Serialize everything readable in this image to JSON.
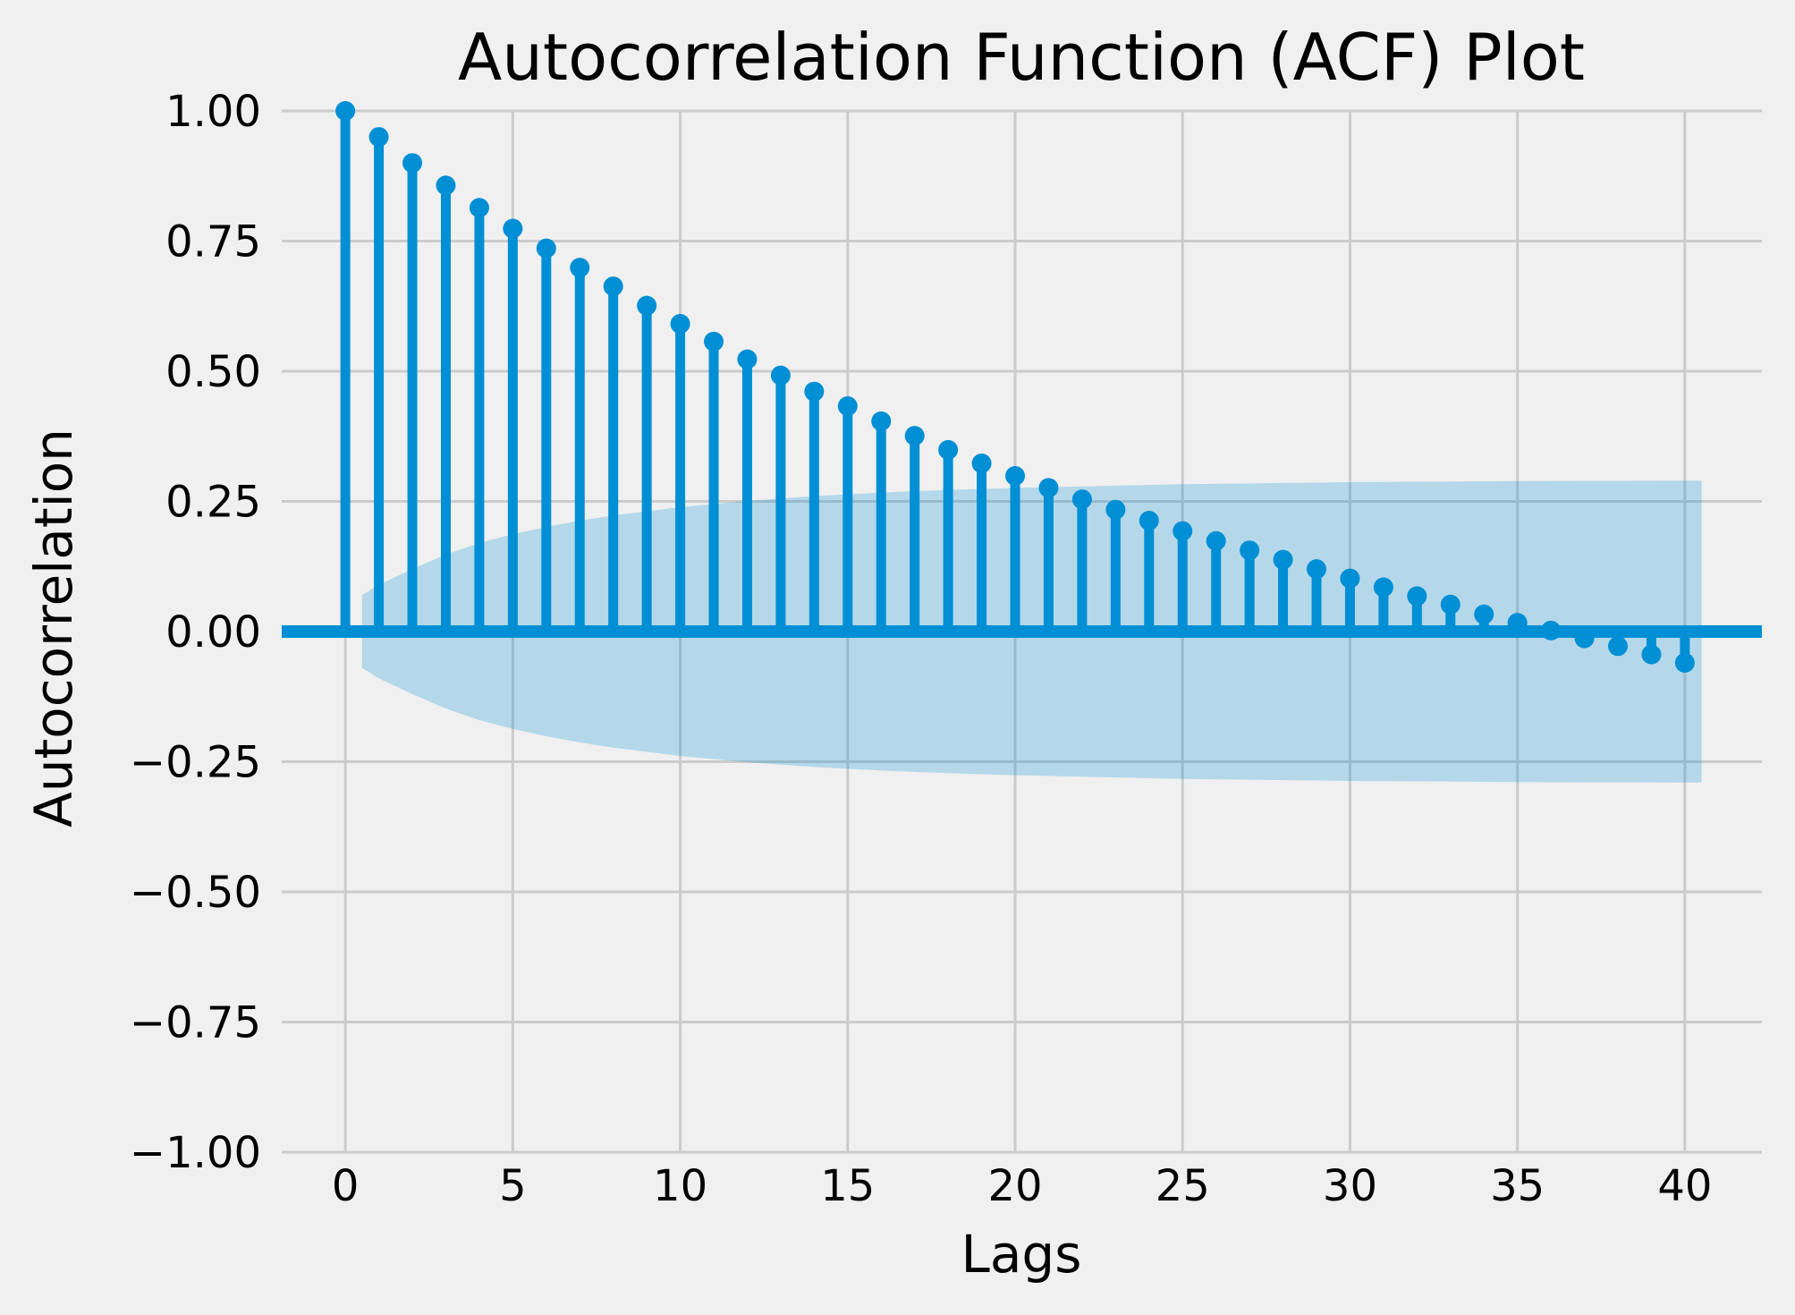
{
  "chart_data": {
    "type": "stem",
    "title": "Autocorrelation Function (ACF) Plot",
    "xlabel": "Lags",
    "ylabel": "Autocorrelation",
    "xlim": [
      -1.9,
      42.3
    ],
    "ylim": [
      -1.0,
      1.0
    ],
    "xticks": [
      0,
      5,
      10,
      15,
      20,
      25,
      30,
      35,
      40
    ],
    "xtick_labels": [
      "0",
      "5",
      "10",
      "15",
      "20",
      "25",
      "30",
      "35",
      "40"
    ],
    "yticks": [
      -1.0,
      -0.75,
      -0.5,
      -0.25,
      0.0,
      0.25,
      0.5,
      0.75,
      1.0
    ],
    "ytick_labels": [
      "−1.00",
      "−0.75",
      "−0.50",
      "−0.25",
      "0.00",
      "0.25",
      "0.50",
      "0.75",
      "1.00"
    ],
    "grid": true,
    "colors": {
      "stem": "#008fd5",
      "band": "#b3d6ea",
      "grid": "#cbcbcb",
      "background": "#f0f0f0"
    },
    "lags": [
      0,
      1,
      2,
      3,
      4,
      5,
      6,
      7,
      8,
      9,
      10,
      11,
      12,
      13,
      14,
      15,
      16,
      17,
      18,
      19,
      20,
      21,
      22,
      23,
      24,
      25,
      26,
      27,
      28,
      29,
      30,
      31,
      32,
      33,
      34,
      35,
      36,
      37,
      38,
      39,
      40
    ],
    "acf": [
      1.0,
      0.95,
      0.9,
      0.857,
      0.814,
      0.774,
      0.736,
      0.699,
      0.663,
      0.626,
      0.591,
      0.557,
      0.523,
      0.492,
      0.461,
      0.433,
      0.404,
      0.376,
      0.349,
      0.323,
      0.299,
      0.276,
      0.254,
      0.234,
      0.213,
      0.193,
      0.174,
      0.156,
      0.138,
      0.12,
      0.102,
      0.085,
      0.068,
      0.052,
      0.033,
      0.017,
      0.002,
      -0.013,
      -0.028,
      -0.044,
      -0.06
    ],
    "confidence_band": {
      "lags": [
        0.5,
        1,
        2,
        3,
        4,
        5,
        6,
        7,
        8,
        10,
        12,
        14,
        16,
        18,
        20,
        25,
        30,
        35,
        40,
        40.5
      ],
      "upper": [
        0.07,
        0.09,
        0.12,
        0.148,
        0.17,
        0.187,
        0.201,
        0.213,
        0.223,
        0.239,
        0.251,
        0.26,
        0.267,
        0.272,
        0.276,
        0.283,
        0.287,
        0.289,
        0.29,
        0.29
      ]
    }
  }
}
